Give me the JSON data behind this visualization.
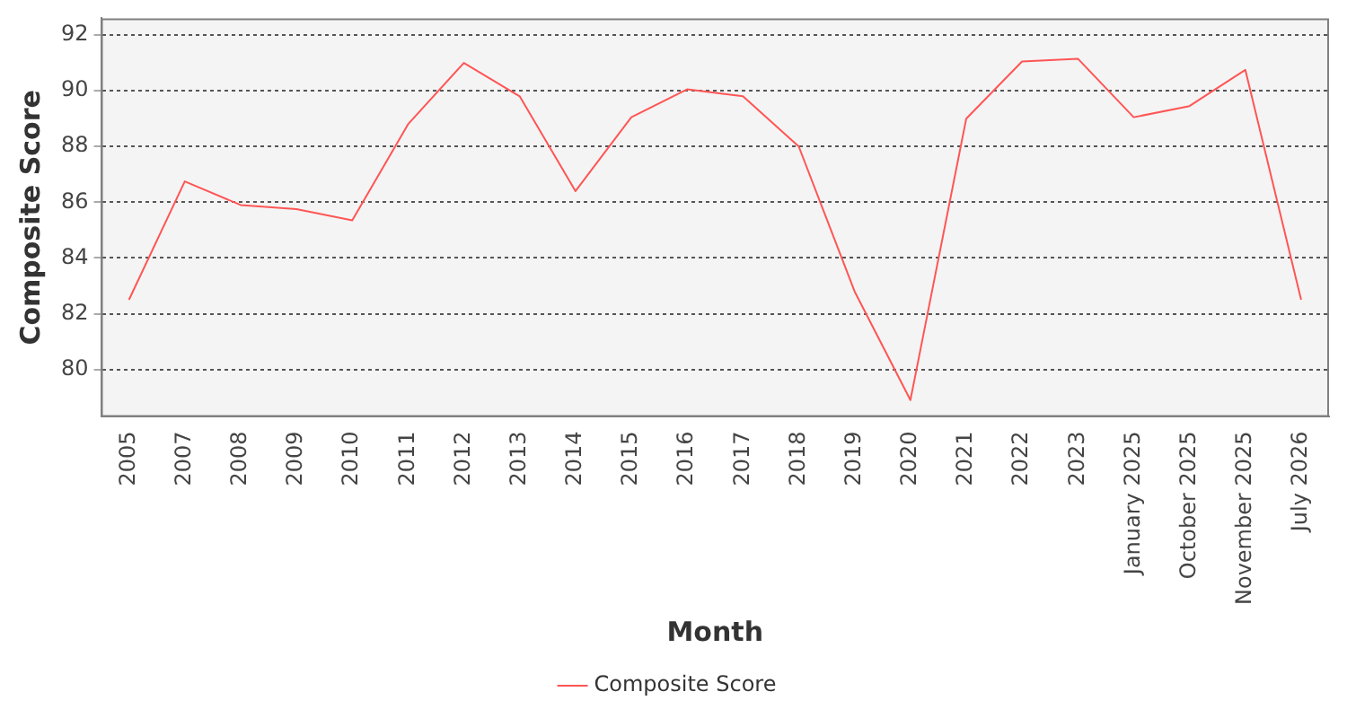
{
  "chart_data": {
    "type": "line",
    "xlabel": "Month",
    "ylabel": "Composite Score",
    "categories": [
      "2005",
      "2007",
      "2008",
      "2009",
      "2010",
      "2011",
      "2012",
      "2013",
      "2014",
      "2015",
      "2016",
      "2017",
      "2018",
      "2019",
      "2020",
      "2021",
      "2022",
      "2023",
      "January 2025",
      "October 2025",
      "November 2025",
      "July 2026"
    ],
    "series": [
      {
        "name": "Composite Score",
        "color": "#ff5555",
        "values": [
          82.5,
          86.75,
          85.9,
          85.75,
          85.35,
          88.8,
          91.0,
          89.8,
          86.4,
          89.05,
          90.05,
          89.8,
          88.0,
          82.8,
          78.9,
          89.0,
          91.05,
          91.15,
          89.05,
          89.45,
          90.75,
          82.5
        ]
      }
    ],
    "ylim": [
      78.3,
      92.6
    ],
    "yticks": [
      80,
      82,
      84,
      86,
      88,
      90,
      92
    ],
    "grid": "y",
    "legend": "bottom",
    "marker": "none",
    "line_style": "solid"
  }
}
